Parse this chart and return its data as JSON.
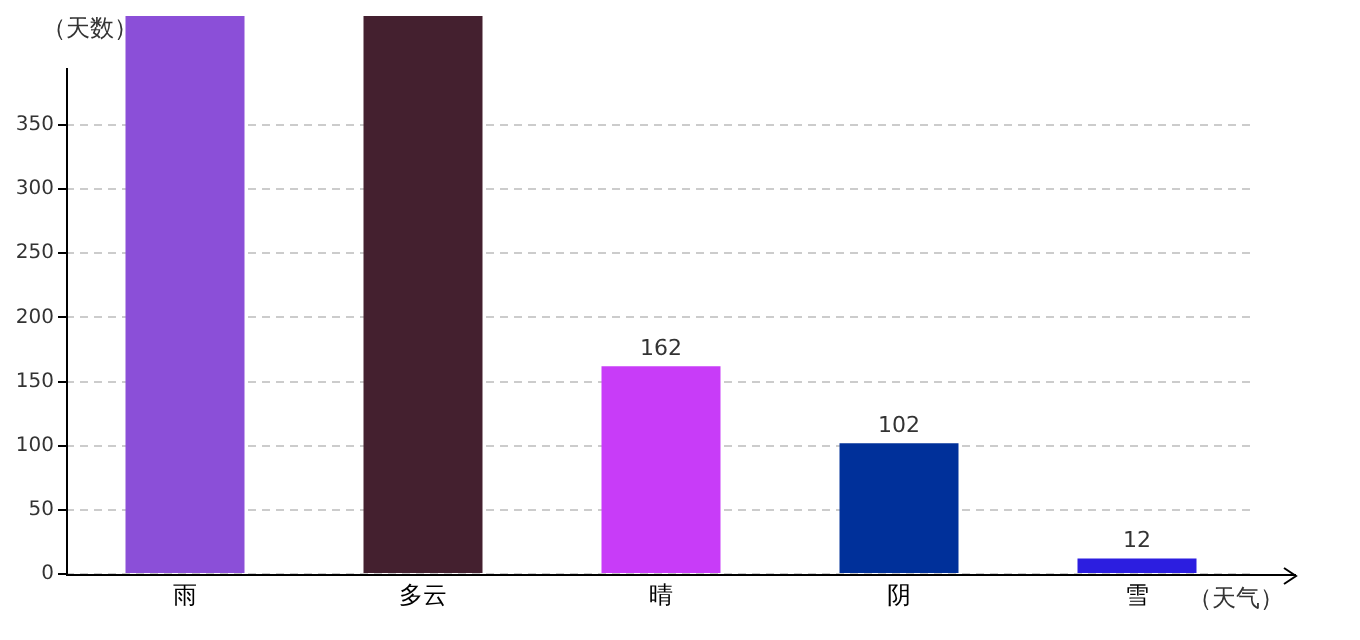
{
  "chart_data": {
    "type": "bar",
    "xlabel": "（天气）",
    "ylabel": "（天数）",
    "categories": [
      "雨",
      "多云",
      "晴",
      "阴",
      "雪"
    ],
    "values": [
      435,
      435,
      162,
      102,
      12
    ],
    "value_labels": [
      null,
      null,
      "162",
      "102",
      "12"
    ],
    "colors": [
      "#8b4fd8",
      "#44202f",
      "#c83cf8",
      "#00309a",
      "#2c1ee0"
    ],
    "ylim": [
      0,
      435
    ],
    "yticks": [
      0,
      50,
      100,
      150,
      200,
      250,
      300,
      350
    ],
    "grid": "y",
    "legend": false
  }
}
